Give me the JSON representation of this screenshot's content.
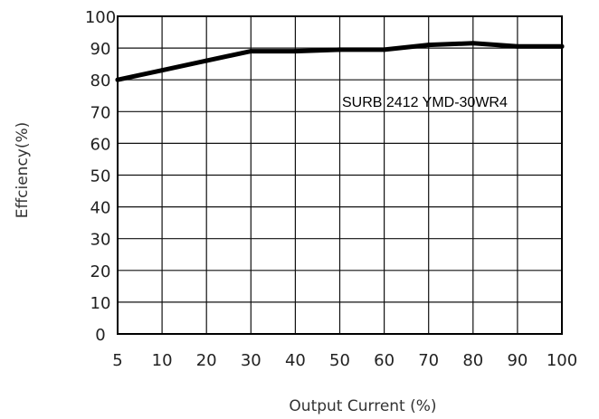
{
  "chart_data": {
    "type": "line",
    "title": "",
    "xlabel": "Output Current (%)",
    "ylabel": "Effciency(%)",
    "x_ticks": [
      5,
      10,
      20,
      30,
      40,
      50,
      60,
      70,
      80,
      90,
      100
    ],
    "y_ticks": [
      0,
      10,
      20,
      30,
      40,
      50,
      60,
      70,
      80,
      90,
      100
    ],
    "xlim": [
      5,
      100
    ],
    "ylim": [
      0,
      100
    ],
    "grid": true,
    "annotation": "SURB 2412 YMD-30WR4",
    "series": [
      {
        "name": "",
        "color": "#000000",
        "x": [
          5,
          10,
          20,
          30,
          40,
          50,
          60,
          70,
          80,
          90,
          100
        ],
        "y": [
          80,
          83,
          86,
          89,
          89,
          89.5,
          89.5,
          91,
          91.5,
          90.5,
          90.5
        ]
      }
    ]
  }
}
